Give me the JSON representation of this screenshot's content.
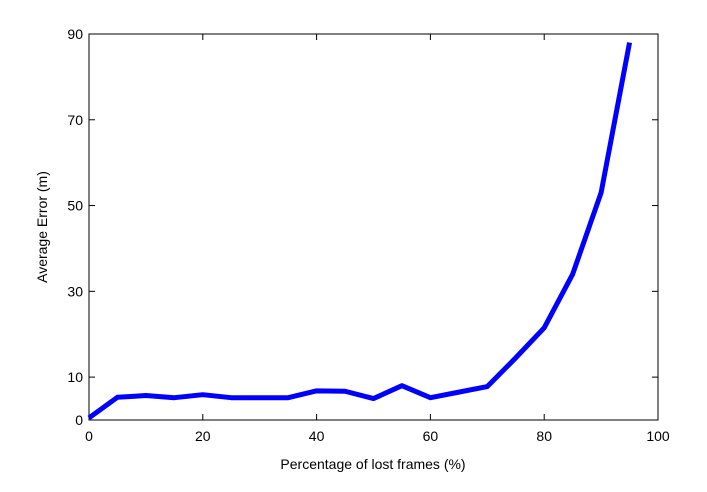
{
  "chart_data": {
    "type": "line",
    "x_label": "Percentage of lost frames (%)",
    "y_label": "Average Error (m)",
    "x": [
      0,
      5,
      10,
      15,
      20,
      25,
      30,
      35,
      40,
      45,
      50,
      55,
      60,
      65,
      70,
      75,
      80,
      85,
      90,
      95
    ],
    "series": [
      {
        "color": "#0000ff",
        "values": [
          0.5,
          5.3,
          5.7,
          5.2,
          5.9,
          5.2,
          5.2,
          5.2,
          6.8,
          6.7,
          5.0,
          8.0,
          5.2,
          6.5,
          7.8,
          14.5,
          21.5,
          34,
          53,
          88
        ]
      }
    ],
    "xlim": [
      0,
      100
    ],
    "xticks": [
      0,
      20,
      40,
      60,
      80,
      100
    ],
    "ylim": [
      0,
      90
    ],
    "yticks": [
      0,
      10,
      30,
      50,
      70,
      90
    ],
    "grid": false
  }
}
